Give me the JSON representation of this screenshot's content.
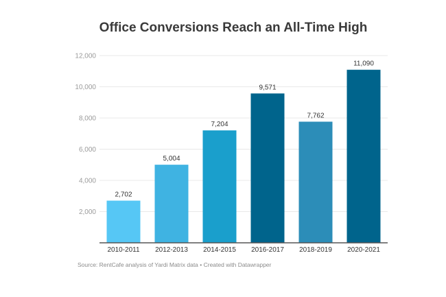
{
  "chart_data": {
    "type": "bar",
    "title": "Office Conversions Reach an All-Time High",
    "categories": [
      "2010-2011",
      "2012-2013",
      "2014-2015",
      "2016-2017",
      "2018-2019",
      "2020-2021"
    ],
    "values": [
      2702,
      5004,
      7204,
      9571,
      7762,
      11090
    ],
    "data_labels": [
      "2,702",
      "5,004",
      "7,204",
      "9,571",
      "7,762",
      "11,090"
    ],
    "colors": [
      "#56c7f5",
      "#3fb3e2",
      "#1a9fcc",
      "#00648c",
      "#2c8db8",
      "#00648c"
    ],
    "ylim": [
      0,
      12000
    ],
    "yticks": [
      2000,
      4000,
      6000,
      8000,
      10000,
      12000
    ],
    "ytick_labels": [
      "2,000",
      "4,000",
      "6,000",
      "8,000",
      "10,000",
      "12,000"
    ],
    "grid": true,
    "xlabel": "",
    "ylabel": "",
    "source": "Source: RentCafe analysis of Yardi Matrix data • Created with Datawrapper"
  }
}
